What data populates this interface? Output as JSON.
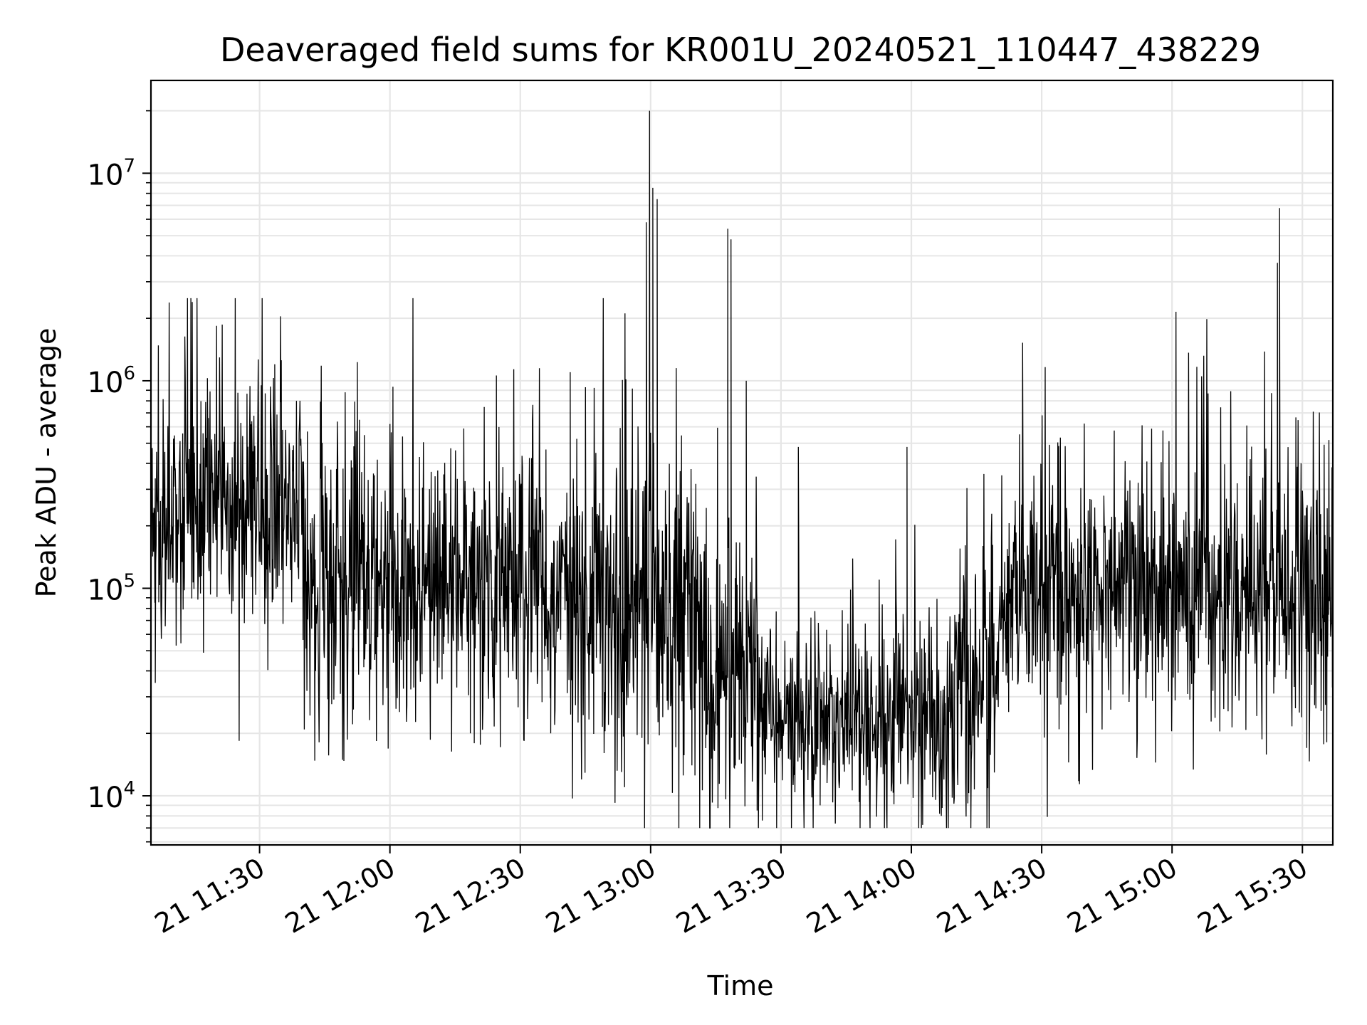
{
  "chart_data": {
    "type": "line",
    "title": "Deaveraged field sums for KR001U_20240521_110447_438229",
    "xlabel": "Time",
    "ylabel": "Peak ADU - average",
    "y_scale": "log",
    "ylim": [
      5800,
      28000000
    ],
    "xlim": [
      "2024-05-21 11:05",
      "2024-05-21 15:37"
    ],
    "grid": true,
    "line_color": "#000000",
    "grid_color": "#e6e6e6",
    "x_ticks": [
      "21 11:30",
      "21 12:00",
      "21 12:30",
      "21 13:00",
      "21 13:30",
      "21 14:00",
      "21 14:30",
      "21 15:00",
      "21 15:30"
    ],
    "y_ticks": [
      {
        "base": "10",
        "exp": "4"
      },
      {
        "base": "10",
        "exp": "5"
      },
      {
        "base": "10",
        "exp": "6"
      },
      {
        "base": "10",
        "exp": "7"
      }
    ],
    "segments": [
      {
        "start": "2024-05-21 11:05",
        "end": "2024-05-21 11:40",
        "median": 230000,
        "spread_decades": 0.28,
        "spike_prob": 0.06
      },
      {
        "start": "2024-05-21 11:40",
        "end": "2024-05-21 12:40",
        "median": 110000,
        "spread_decades": 0.34,
        "spike_prob": 0.05
      },
      {
        "start": "2024-05-21 12:40",
        "end": "2024-05-21 13:10",
        "median": 80000,
        "spread_decades": 0.38,
        "spike_prob": 0.05
      },
      {
        "start": "2024-05-21 13:10",
        "end": "2024-05-21 13:25",
        "median": 45000,
        "spread_decades": 0.36,
        "spike_prob": 0.05
      },
      {
        "start": "2024-05-21 13:25",
        "end": "2024-05-21 14:10",
        "median": 24000,
        "spread_decades": 0.22,
        "spike_prob": 0.04
      },
      {
        "start": "2024-05-21 14:10",
        "end": "2024-05-21 14:20",
        "median": 45000,
        "spread_decades": 0.3,
        "spike_prob": 0.05
      },
      {
        "start": "2024-05-21 14:20",
        "end": "2024-05-21 15:37",
        "median": 95000,
        "spread_decades": 0.3,
        "spike_prob": 0.05
      }
    ],
    "peaks": [
      {
        "x": "2024-05-21 12:59:00",
        "y": 5800000
      },
      {
        "x": "2024-05-21 12:59:45",
        "y": 20000000
      },
      {
        "x": "2024-05-21 13:00:30",
        "y": 8500000
      },
      {
        "x": "2024-05-21 13:01:30",
        "y": 7500000
      },
      {
        "x": "2024-05-21 13:17:45",
        "y": 5400000
      },
      {
        "x": "2024-05-21 13:18:30",
        "y": 4800000
      },
      {
        "x": "2024-05-21 13:22:00",
        "y": 1000000
      },
      {
        "x": "2024-05-21 13:24:30",
        "y": 8500
      },
      {
        "x": "2024-05-21 13:39:00",
        "y": 9000
      },
      {
        "x": "2024-05-21 13:34:00",
        "y": 480000
      },
      {
        "x": "2024-05-21 13:59:00",
        "y": 480000
      },
      {
        "x": "2024-05-21 14:13:00",
        "y": 9200
      },
      {
        "x": "2024-05-21 15:24:15",
        "y": 3700000
      },
      {
        "x": "2024-05-21 15:24:45",
        "y": 6800000
      },
      {
        "x": "2024-05-21 11:06:00",
        "y": 35000
      },
      {
        "x": "2024-05-21 11:06:45",
        "y": 460000
      },
      {
        "x": "2024-05-21 11:18:00",
        "y": 1030000
      },
      {
        "x": "2024-05-21 11:33:30",
        "y": 1200000
      },
      {
        "x": "2024-05-21 11:52:30",
        "y": 1230000
      },
      {
        "x": "2024-05-21 12:24:30",
        "y": 1060000
      },
      {
        "x": "2024-05-21 12:41:30",
        "y": 1100000
      },
      {
        "x": "2024-05-21 12:53:30",
        "y": 1010000
      },
      {
        "x": "2024-05-21 12:58:00",
        "y": 19000
      },
      {
        "x": "2024-05-21 13:19:30",
        "y": 14000
      },
      {
        "x": "2024-05-21 12:18:30",
        "y": 20000
      },
      {
        "x": "2024-05-21 12:37:00",
        "y": 20000
      },
      {
        "x": "2024-05-21 15:31:00",
        "y": 17000
      }
    ]
  }
}
